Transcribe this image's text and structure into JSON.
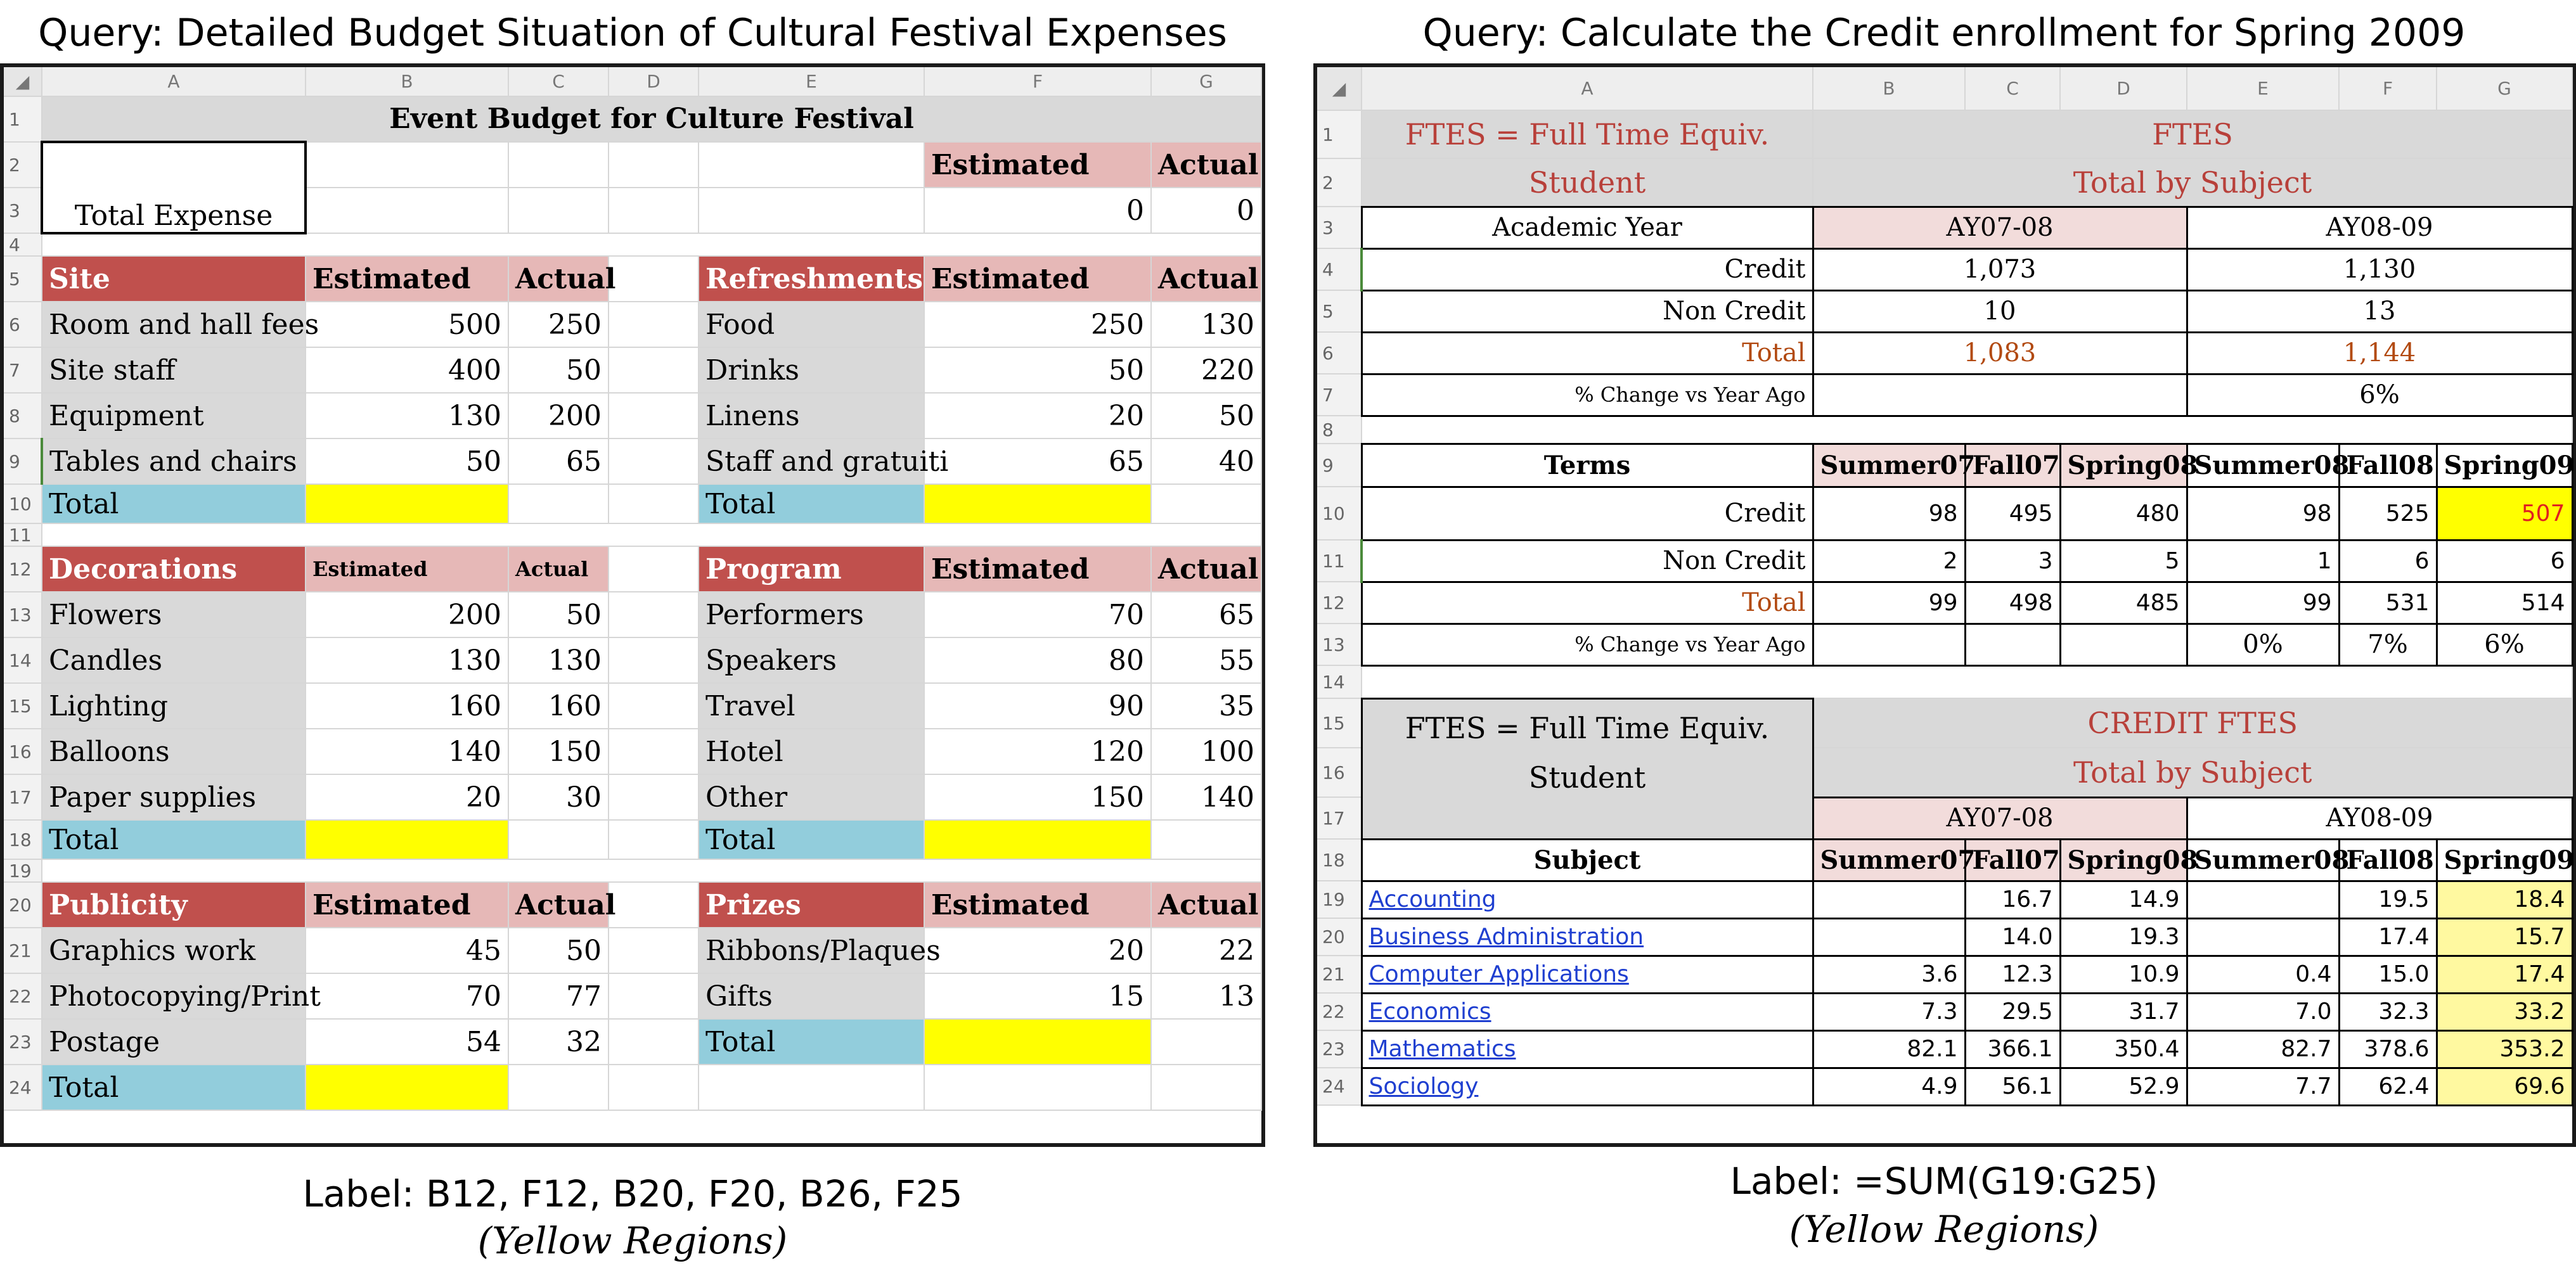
{
  "left": {
    "query": "Query: Detailed Budget Situation of Cultural Festival Expenses",
    "label": "Label: B12, F12, B20, F20, B26, F25",
    "sub": "(Yellow Regions)",
    "cols": [
      "A",
      "B",
      "C",
      "D",
      "E",
      "F",
      "G"
    ],
    "title": "Event Budget for Culture Festival",
    "estimated": "Estimated",
    "actual": "Actual",
    "total_expense": "Total Expense",
    "total_est": "0",
    "total_act": "0",
    "total": "Total",
    "site": {
      "header": "Site",
      "items": [
        {
          "name": "Room and hall fees",
          "est": "500",
          "act": "250"
        },
        {
          "name": "Site staff",
          "est": "400",
          "act": "50"
        },
        {
          "name": "Equipment",
          "est": "130",
          "act": "200"
        },
        {
          "name": "Tables and chairs",
          "est": "50",
          "act": "65"
        }
      ]
    },
    "refreshments": {
      "header": "Refreshments",
      "items": [
        {
          "name": "Food",
          "est": "250",
          "act": "130"
        },
        {
          "name": "Drinks",
          "est": "50",
          "act": "220"
        },
        {
          "name": "Linens",
          "est": "20",
          "act": "50"
        },
        {
          "name": "Staff and gratuiti",
          "est": "65",
          "act": "40"
        }
      ]
    },
    "decorations": {
      "header": "Decorations",
      "items": [
        {
          "name": "Flowers",
          "est": "200",
          "act": "50"
        },
        {
          "name": "Candles",
          "est": "130",
          "act": "130"
        },
        {
          "name": "Lighting",
          "est": "160",
          "act": "160"
        },
        {
          "name": "Balloons",
          "est": "140",
          "act": "150"
        },
        {
          "name": "Paper supplies",
          "est": "20",
          "act": "30"
        }
      ]
    },
    "program": {
      "header": "Program",
      "items": [
        {
          "name": "Performers",
          "est": "70",
          "act": "65"
        },
        {
          "name": "Speakers",
          "est": "80",
          "act": "55"
        },
        {
          "name": "Travel",
          "est": "90",
          "act": "35"
        },
        {
          "name": "Hotel",
          "est": "120",
          "act": "100"
        },
        {
          "name": "Other",
          "est": "150",
          "act": "140"
        }
      ]
    },
    "publicity": {
      "header": "Publicity",
      "items": [
        {
          "name": "Graphics work",
          "est": "45",
          "act": "50"
        },
        {
          "name": "Photocopying/Print",
          "est": "70",
          "act": "77"
        },
        {
          "name": "Postage",
          "est": "54",
          "act": "32"
        }
      ]
    },
    "prizes": {
      "header": "Prizes",
      "items": [
        {
          "name": "Ribbons/Plaques",
          "est": "20",
          "act": "22"
        },
        {
          "name": "Gifts",
          "est": "15",
          "act": "13"
        }
      ]
    }
  },
  "right": {
    "query": "Query: Calculate the Credit enrollment for Spring 2009",
    "label": "Label: =SUM(G19:G25)",
    "sub": "(Yellow Regions)",
    "cols": [
      "A",
      "B",
      "C",
      "D",
      "E",
      "F",
      "G"
    ],
    "ftes_l1": "FTES = Full Time Equiv.",
    "ftes_l2": "Student",
    "ftes": "FTES",
    "total_by_subject": "Total by Subject",
    "academic_year": "Academic Year",
    "ay1": "AY07-08",
    "ay2": "AY08-09",
    "credit": "Credit",
    "non_credit": "Non Credit",
    "total": "Total",
    "pct": "% Change vs Year Ago",
    "credit_vals": [
      "1,073",
      "1,130"
    ],
    "noncredit_vals": [
      "10",
      "13"
    ],
    "total_vals": [
      "1,083",
      "1,144"
    ],
    "pct_top": "6%",
    "terms": "Terms",
    "term_names": [
      "Summer07",
      "Fall07",
      "Spring08",
      "Summer08",
      "Fall08",
      "Spring09"
    ],
    "term_credit": [
      "98",
      "495",
      "480",
      "98",
      "525",
      "507"
    ],
    "term_noncredit": [
      "2",
      "3",
      "5",
      "1",
      "6",
      "6"
    ],
    "term_total": [
      "99",
      "498",
      "485",
      "99",
      "531",
      "514"
    ],
    "term_pct": [
      "",
      "",
      "",
      "0%",
      "7%",
      "6%"
    ],
    "credit_ftes": "CREDIT FTES",
    "subject": "Subject",
    "subjects": [
      {
        "name": "Accounting",
        "v": [
          "",
          "16.7",
          "14.9",
          "",
          "19.5",
          "18.4"
        ]
      },
      {
        "name": "Business Administration",
        "v": [
          "",
          "14.0",
          "19.3",
          "",
          "17.4",
          "15.7"
        ]
      },
      {
        "name": "Computer Applications",
        "v": [
          "3.6",
          "12.3",
          "10.9",
          "0.4",
          "15.0",
          "17.4"
        ]
      },
      {
        "name": "Economics",
        "v": [
          "7.3",
          "29.5",
          "31.7",
          "7.0",
          "32.3",
          "33.2"
        ]
      },
      {
        "name": "Mathematics",
        "v": [
          "82.1",
          "366.1",
          "350.4",
          "82.7",
          "378.6",
          "353.2"
        ]
      },
      {
        "name": "Sociology",
        "v": [
          "4.9",
          "56.1",
          "52.9",
          "7.7",
          "62.4",
          "69.6"
        ]
      }
    ]
  }
}
